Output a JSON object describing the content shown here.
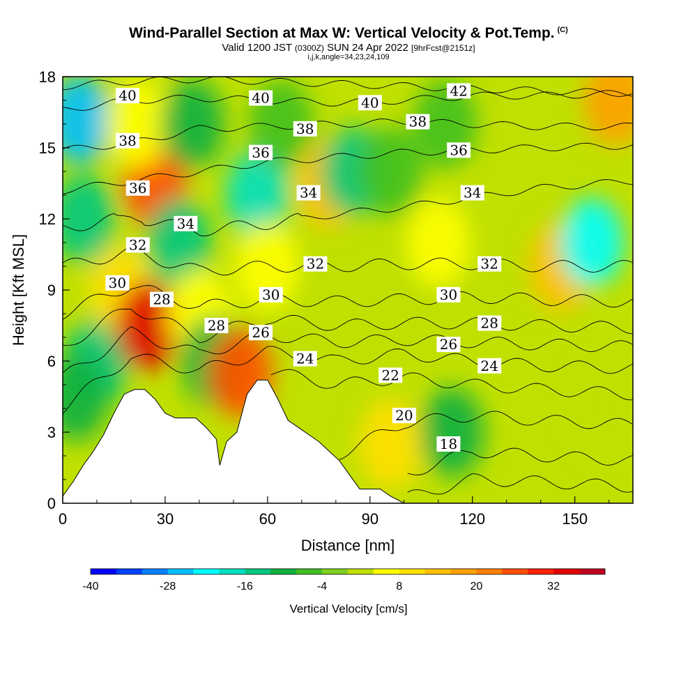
{
  "header": {
    "title": "Wind-Parallel Section at Max W: Vertical Velocity & Pot.Temp.",
    "copyright": "(C)",
    "subtitle_a": "Valid 1200 JST",
    "subtitle_b": "(0300Z)",
    "subtitle_c": "SUN 24 Apr 2022",
    "subtitle_d": "[9hrFcst@2151z]",
    "params": "i,j,k,angle=34,23,24,109"
  },
  "colorbar": {
    "title": "Vertical Velocity [cm/s]",
    "min": -40,
    "max": 40,
    "step": 4,
    "tick_labels": [
      "-40",
      "-28",
      "-16",
      "-4",
      "8",
      "20",
      "32"
    ],
    "colors": [
      "#0000ff",
      "#0040ff",
      "#0080ff",
      "#00c0ff",
      "#00ffff",
      "#00e0c0",
      "#00c880",
      "#10b040",
      "#40c020",
      "#80d020",
      "#c0e000",
      "#ffff00",
      "#ffe000",
      "#ffc000",
      "#ffa000",
      "#ff8000",
      "#ff5000",
      "#ff2000",
      "#e00000",
      "#c00020",
      "#a00060",
      "#6000a0"
    ]
  },
  "chart_data": {
    "type": "heatmap",
    "xlabel": "Distance [nm]",
    "ylabel": "Height [Kft MSL]",
    "xlim": [
      0,
      167
    ],
    "ylim": [
      0,
      18
    ],
    "xticks": [
      0,
      30,
      60,
      90,
      120,
      150
    ],
    "yticks": [
      0,
      3,
      6,
      9,
      12,
      15,
      18
    ],
    "color_variable": "Vertical Velocity [cm/s]",
    "contour_variable": "Potential temperature",
    "terrain_profile": [
      [
        0,
        0.3
      ],
      [
        3,
        0.9
      ],
      [
        6,
        1.6
      ],
      [
        9,
        2.2
      ],
      [
        12,
        2.9
      ],
      [
        15,
        3.8
      ],
      [
        18,
        4.6
      ],
      [
        21,
        4.8
      ],
      [
        24,
        4.8
      ],
      [
        27,
        4.4
      ],
      [
        30,
        3.8
      ],
      [
        33,
        3.6
      ],
      [
        36,
        3.6
      ],
      [
        39,
        3.6
      ],
      [
        42,
        3.2
      ],
      [
        45,
        2.7
      ],
      [
        46,
        1.6
      ],
      [
        48,
        2.6
      ],
      [
        51,
        3.0
      ],
      [
        54,
        4.6
      ],
      [
        57,
        5.2
      ],
      [
        60,
        5.2
      ],
      [
        63,
        4.4
      ],
      [
        66,
        3.5
      ],
      [
        69,
        3.2
      ],
      [
        72,
        2.9
      ],
      [
        75,
        2.6
      ],
      [
        78,
        2.2
      ],
      [
        81,
        1.8
      ],
      [
        84,
        1.2
      ],
      [
        87,
        0.6
      ],
      [
        90,
        0.6
      ],
      [
        93,
        0.6
      ],
      [
        96,
        0.3
      ],
      [
        100,
        0.0
      ],
      [
        167,
        0.0
      ]
    ],
    "velocity_cells": [
      {
        "x": 5,
        "z": 16.2,
        "w": -28
      },
      {
        "x": 6,
        "z": 12,
        "w": -14
      },
      {
        "x": 10,
        "z": 6,
        "w": -16
      },
      {
        "x": 4,
        "z": 4.5,
        "w": -12
      },
      {
        "x": 17,
        "z": 9,
        "w": 8
      },
      {
        "x": 25,
        "z": 7.5,
        "w": 32
      },
      {
        "x": 27,
        "z": 13.5,
        "w": 24
      },
      {
        "x": 22,
        "z": 16,
        "w": 6
      },
      {
        "x": 38,
        "z": 16,
        "w": -12
      },
      {
        "x": 34,
        "z": 11,
        "w": -16
      },
      {
        "x": 40,
        "z": 8,
        "w": 6
      },
      {
        "x": 44,
        "z": 6,
        "w": -10
      },
      {
        "x": 52,
        "z": 5.5,
        "w": 24
      },
      {
        "x": 57,
        "z": 13,
        "w": -20
      },
      {
        "x": 60,
        "z": 10,
        "w": 4
      },
      {
        "x": 64,
        "z": 16,
        "w": -8
      },
      {
        "x": 78,
        "z": 13.5,
        "w": 12
      },
      {
        "x": 85,
        "z": 14,
        "w": -14
      },
      {
        "x": 96,
        "z": 14,
        "w": -8
      },
      {
        "x": 112,
        "z": 16,
        "w": -6
      },
      {
        "x": 110,
        "z": 11,
        "w": 4
      },
      {
        "x": 96,
        "z": 2.5,
        "w": 10
      },
      {
        "x": 114,
        "z": 3,
        "w": -10
      },
      {
        "x": 146,
        "z": 10,
        "w": 12
      },
      {
        "x": 155,
        "z": 11,
        "w": -24
      },
      {
        "x": 162,
        "z": 17,
        "w": 16
      },
      {
        "x": 158,
        "z": 4,
        "w": 2
      }
    ],
    "contour_labels": [
      {
        "text": "40",
        "x": 19,
        "z": 17.2
      },
      {
        "text": "40",
        "x": 58,
        "z": 17.1
      },
      {
        "text": "40",
        "x": 90,
        "z": 16.9
      },
      {
        "text": "42",
        "x": 116,
        "z": 17.4
      },
      {
        "text": "38",
        "x": 19,
        "z": 15.3
      },
      {
        "text": "38",
        "x": 71,
        "z": 15.8
      },
      {
        "text": "38",
        "x": 104,
        "z": 16.1
      },
      {
        "text": "36",
        "x": 22,
        "z": 13.3
      },
      {
        "text": "36",
        "x": 58,
        "z": 14.8
      },
      {
        "text": "36",
        "x": 116,
        "z": 14.9
      },
      {
        "text": "34",
        "x": 36,
        "z": 11.8
      },
      {
        "text": "34",
        "x": 72,
        "z": 13.1
      },
      {
        "text": "34",
        "x": 120,
        "z": 13.1
      },
      {
        "text": "32",
        "x": 22,
        "z": 10.9
      },
      {
        "text": "32",
        "x": 74,
        "z": 10.1
      },
      {
        "text": "32",
        "x": 125,
        "z": 10.1
      },
      {
        "text": "30",
        "x": 16,
        "z": 9.3
      },
      {
        "text": "30",
        "x": 61,
        "z": 8.8
      },
      {
        "text": "30",
        "x": 113,
        "z": 8.8
      },
      {
        "text": "28",
        "x": 29,
        "z": 8.6
      },
      {
        "text": "28",
        "x": 45,
        "z": 7.5
      },
      {
        "text": "28",
        "x": 125,
        "z": 7.6
      },
      {
        "text": "26",
        "x": 58,
        "z": 7.2
      },
      {
        "text": "26",
        "x": 113,
        "z": 6.7
      },
      {
        "text": "24",
        "x": 71,
        "z": 6.1
      },
      {
        "text": "24",
        "x": 125,
        "z": 5.8
      },
      {
        "text": "22",
        "x": 96,
        "z": 5.4
      },
      {
        "text": "20",
        "x": 100,
        "z": 3.7
      },
      {
        "text": "18",
        "x": 113,
        "z": 2.5
      }
    ]
  }
}
